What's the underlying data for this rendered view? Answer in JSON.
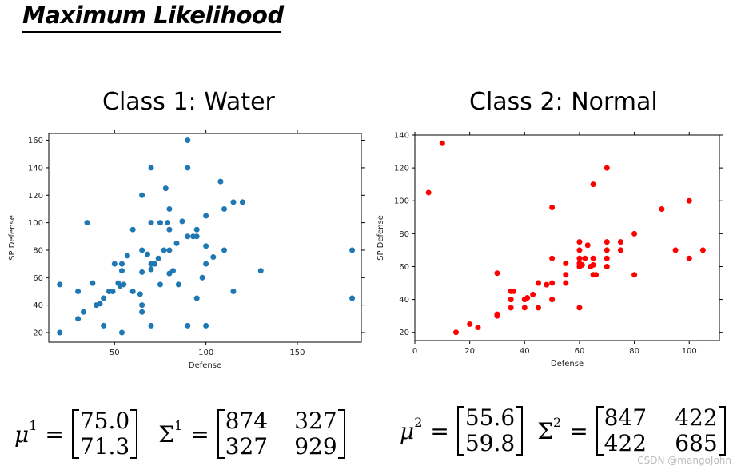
{
  "slide": {
    "title": "Maximum Likelihood",
    "class1_title": "Class 1: Water",
    "class2_title": "Class 2: Normal",
    "watermark": "CSDN @mangoJohn"
  },
  "equations": {
    "class1": {
      "mu_symbol": "μ",
      "mu_sup": "1",
      "mu_values": [
        "75.0",
        "71.3"
      ],
      "sigma_symbol": "Σ",
      "sigma_sup": "1",
      "sigma_rows": [
        [
          "874",
          "327"
        ],
        [
          "327",
          "929"
        ]
      ]
    },
    "class2": {
      "mu_symbol": "μ",
      "mu_sup": "2",
      "mu_values": [
        "55.6",
        "59.8"
      ],
      "sigma_symbol": "Σ",
      "sigma_sup": "2",
      "sigma_rows": [
        [
          "847",
          "422"
        ],
        [
          "422",
          "685"
        ]
      ]
    },
    "equals": "="
  },
  "chart_data": [
    {
      "type": "scatter",
      "title": "",
      "xlabel": "Defense",
      "ylabel": "SP Defense",
      "xlim": [
        14,
        185
      ],
      "ylim": [
        13,
        165
      ],
      "xticks": [
        50,
        100,
        150
      ],
      "yticks": [
        20,
        40,
        60,
        80,
        100,
        120,
        140,
        160
      ],
      "color": "#1f77b4",
      "grid": false,
      "points": [
        [
          20,
          55
        ],
        [
          20,
          20
        ],
        [
          30,
          50
        ],
        [
          30,
          30
        ],
        [
          33,
          35
        ],
        [
          35,
          100
        ],
        [
          38,
          56
        ],
        [
          40,
          40
        ],
        [
          42,
          41
        ],
        [
          44,
          45
        ],
        [
          44,
          25
        ],
        [
          47,
          50
        ],
        [
          49,
          50
        ],
        [
          50,
          70
        ],
        [
          52,
          56
        ],
        [
          53,
          54
        ],
        [
          54,
          65
        ],
        [
          54,
          70
        ],
        [
          55,
          55
        ],
        [
          54,
          20
        ],
        [
          57,
          76
        ],
        [
          60,
          95
        ],
        [
          60,
          50
        ],
        [
          64,
          48
        ],
        [
          65,
          120
        ],
        [
          65,
          64
        ],
        [
          65,
          80
        ],
        [
          65,
          40
        ],
        [
          65,
          35
        ],
        [
          68,
          77
        ],
        [
          70,
          140
        ],
        [
          70,
          100
        ],
        [
          70,
          70
        ],
        [
          70,
          66
        ],
        [
          70,
          25
        ],
        [
          72,
          70
        ],
        [
          74,
          74
        ],
        [
          75,
          100
        ],
        [
          75,
          55
        ],
        [
          77,
          80
        ],
        [
          78,
          125
        ],
        [
          79,
          100
        ],
        [
          80,
          80
        ],
        [
          80,
          110
        ],
        [
          80,
          63
        ],
        [
          80,
          95
        ],
        [
          82,
          65
        ],
        [
          84,
          85
        ],
        [
          85,
          55
        ],
        [
          87,
          101
        ],
        [
          90,
          160
        ],
        [
          90,
          140
        ],
        [
          90,
          90
        ],
        [
          90,
          25
        ],
        [
          93,
          90
        ],
        [
          95,
          95
        ],
        [
          95,
          90
        ],
        [
          95,
          45
        ],
        [
          98,
          60
        ],
        [
          100,
          105
        ],
        [
          100,
          83
        ],
        [
          100,
          70
        ],
        [
          100,
          25
        ],
        [
          104,
          75
        ],
        [
          108,
          130
        ],
        [
          110,
          110
        ],
        [
          110,
          80
        ],
        [
          115,
          115
        ],
        [
          115,
          50
        ],
        [
          120,
          115
        ],
        [
          130,
          65
        ],
        [
          180,
          80
        ],
        [
          180,
          45
        ]
      ]
    },
    {
      "type": "scatter",
      "title": "",
      "xlabel": "Defense",
      "ylabel": "SP Defense",
      "xlim": [
        0,
        111
      ],
      "ylim": [
        15,
        140
      ],
      "xticks": [
        0,
        20,
        40,
        60,
        80,
        100
      ],
      "yticks": [
        20,
        40,
        60,
        80,
        100,
        120,
        140
      ],
      "color": "#ff0000",
      "grid": false,
      "points": [
        [
          5,
          105
        ],
        [
          10,
          135
        ],
        [
          15,
          20
        ],
        [
          20,
          25
        ],
        [
          23,
          23
        ],
        [
          30,
          56
        ],
        [
          30,
          31
        ],
        [
          30,
          30
        ],
        [
          35,
          45
        ],
        [
          36,
          45
        ],
        [
          35,
          40
        ],
        [
          35,
          35
        ],
        [
          40,
          40
        ],
        [
          41,
          41
        ],
        [
          40,
          35
        ],
        [
          43,
          43
        ],
        [
          45,
          50
        ],
        [
          45,
          35
        ],
        [
          48,
          49
        ],
        [
          50,
          96
        ],
        [
          50,
          65
        ],
        [
          50,
          50
        ],
        [
          50,
          40
        ],
        [
          55,
          62
        ],
        [
          55,
          55
        ],
        [
          55,
          50
        ],
        [
          60,
          75
        ],
        [
          60,
          70
        ],
        [
          60,
          65
        ],
        [
          60,
          62
        ],
        [
          60,
          60
        ],
        [
          60,
          35
        ],
        [
          61,
          61
        ],
        [
          62,
          65
        ],
        [
          63,
          73
        ],
        [
          64,
          60
        ],
        [
          65,
          110
        ],
        [
          65,
          65
        ],
        [
          65,
          61
        ],
        [
          65,
          55
        ],
        [
          66,
          55
        ],
        [
          70,
          120
        ],
        [
          70,
          75
        ],
        [
          70,
          70
        ],
        [
          70,
          65
        ],
        [
          70,
          60
        ],
        [
          75,
          75
        ],
        [
          75,
          70
        ],
        [
          80,
          80
        ],
        [
          80,
          55
        ],
        [
          90,
          95
        ],
        [
          95,
          70
        ],
        [
          100,
          100
        ],
        [
          100,
          65
        ],
        [
          105,
          70
        ]
      ]
    }
  ]
}
